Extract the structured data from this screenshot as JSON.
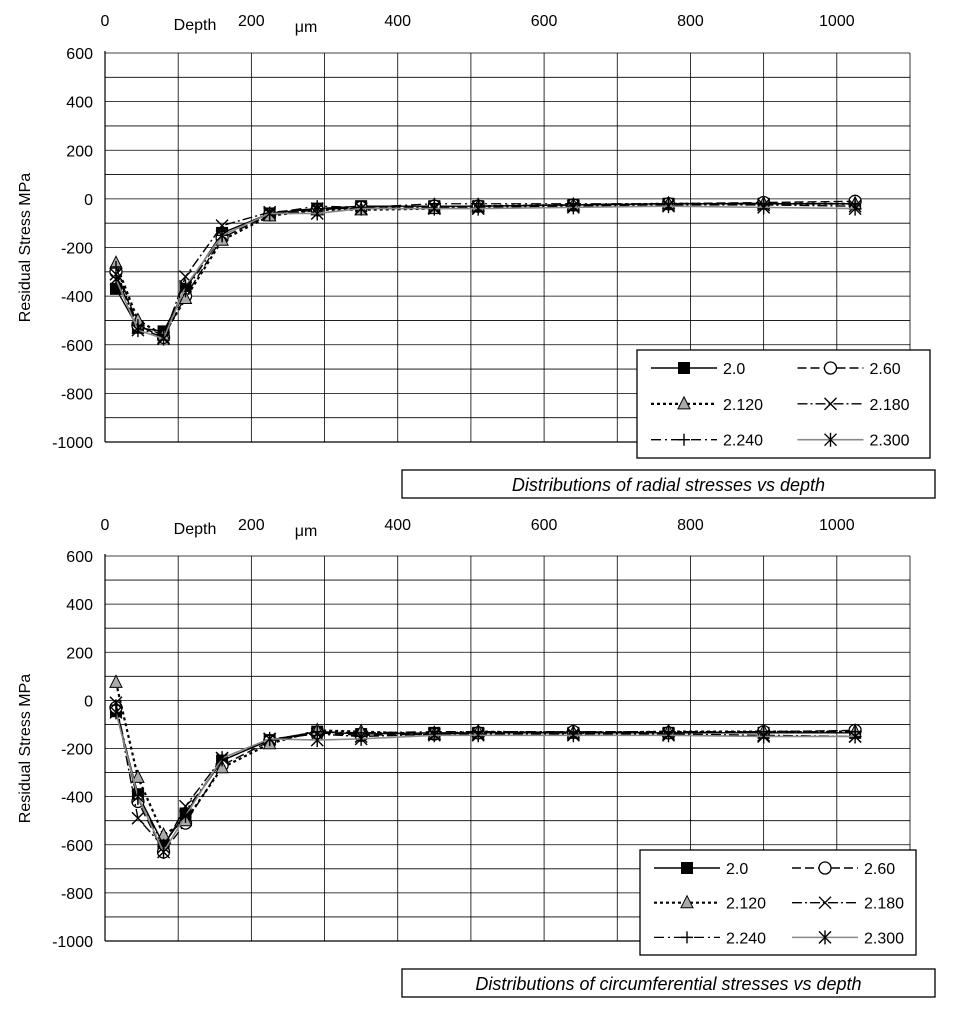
{
  "chart_data": [
    {
      "type": "line",
      "caption": "Distributions of radial stresses vs depth",
      "xlabel": "Depth",
      "xunit": "μm",
      "ylabel": "Residual Stress  MPa",
      "xlim": [
        0,
        1100
      ],
      "ylim": [
        -1000,
        600
      ],
      "xticks": [
        "0",
        "200",
        "400",
        "600",
        "800",
        "1000"
      ],
      "yticks": [
        "600",
        "400",
        "200",
        "0",
        "-200",
        "-400",
        "-600",
        "-800",
        "-1000"
      ],
      "grid": true,
      "legend_position": "bottom-right",
      "x": [
        15,
        45,
        80,
        110,
        160,
        225,
        290,
        350,
        450,
        510,
        640,
        770,
        900,
        1025
      ],
      "series": [
        {
          "name": "2.0",
          "values": [
            -370,
            -530,
            -545,
            -370,
            -140,
            -60,
            -40,
            -30,
            -30,
            -30,
            -25,
            -20,
            -20,
            -20
          ]
        },
        {
          "name": "2.60",
          "values": [
            -300,
            -520,
            -570,
            -400,
            -160,
            -65,
            -45,
            -35,
            -30,
            -30,
            -25,
            -20,
            -15,
            -10
          ]
        },
        {
          "name": "2.120",
          "values": [
            -265,
            -500,
            -560,
            -410,
            -170,
            -70,
            -45,
            -45,
            -40,
            -30,
            -25,
            -20,
            -20,
            -20
          ]
        },
        {
          "name": "2.180",
          "values": [
            -310,
            -530,
            -570,
            -320,
            -110,
            -55,
            -40,
            -40,
            -35,
            -35,
            -30,
            -25,
            -25,
            -30
          ]
        },
        {
          "name": "2.240",
          "values": [
            -280,
            -520,
            -560,
            -380,
            -150,
            -60,
            -30,
            -35,
            -20,
            -20,
            -20,
            -20,
            -20,
            -20
          ]
        },
        {
          "name": "2.300",
          "values": [
            -330,
            -540,
            -575,
            -360,
            -150,
            -60,
            -60,
            -40,
            -40,
            -40,
            -35,
            -30,
            -35,
            -40
          ]
        }
      ]
    },
    {
      "type": "line",
      "caption": "Distributions of circumferential stresses vs depth",
      "xlabel": "Depth",
      "xunit": "μm",
      "ylabel": "Residual Stress  MPa",
      "xlim": [
        0,
        1100
      ],
      "ylim": [
        -1000,
        600
      ],
      "xticks": [
        "0",
        "200",
        "400",
        "600",
        "800",
        "1000"
      ],
      "yticks": [
        "600",
        "400",
        "200",
        "0",
        "-200",
        "-400",
        "-600",
        "-800",
        "-1000"
      ],
      "grid": true,
      "legend_position": "bottom-right",
      "x": [
        15,
        45,
        80,
        110,
        160,
        225,
        290,
        350,
        450,
        510,
        640,
        770,
        900,
        1025
      ],
      "series": [
        {
          "name": "2.0",
          "values": [
            -45,
            -390,
            -600,
            -470,
            -250,
            -165,
            -130,
            -140,
            -135,
            -135,
            -135,
            -135,
            -135,
            -135
          ]
        },
        {
          "name": "2.60",
          "values": [
            -30,
            -420,
            -630,
            -510,
            -270,
            -170,
            -135,
            -145,
            -140,
            -135,
            -130,
            -135,
            -130,
            -125
          ]
        },
        {
          "name": "2.120",
          "values": [
            75,
            -320,
            -560,
            -500,
            -280,
            -180,
            -125,
            -130,
            -140,
            -130,
            -135,
            -130,
            -130,
            -130
          ]
        },
        {
          "name": "2.180",
          "values": [
            -10,
            -490,
            -610,
            -440,
            -240,
            -160,
            -140,
            -150,
            -140,
            -140,
            -140,
            -140,
            -145,
            -150
          ]
        },
        {
          "name": "2.240",
          "values": [
            -20,
            -410,
            -600,
            -460,
            -250,
            -165,
            -130,
            -135,
            -130,
            -130,
            -130,
            -130,
            -130,
            -130
          ]
        },
        {
          "name": "2.300",
          "values": [
            -50,
            -400,
            -630,
            -480,
            -240,
            -160,
            -165,
            -160,
            -145,
            -145,
            -145,
            -145,
            -150,
            -150
          ]
        }
      ]
    }
  ]
}
